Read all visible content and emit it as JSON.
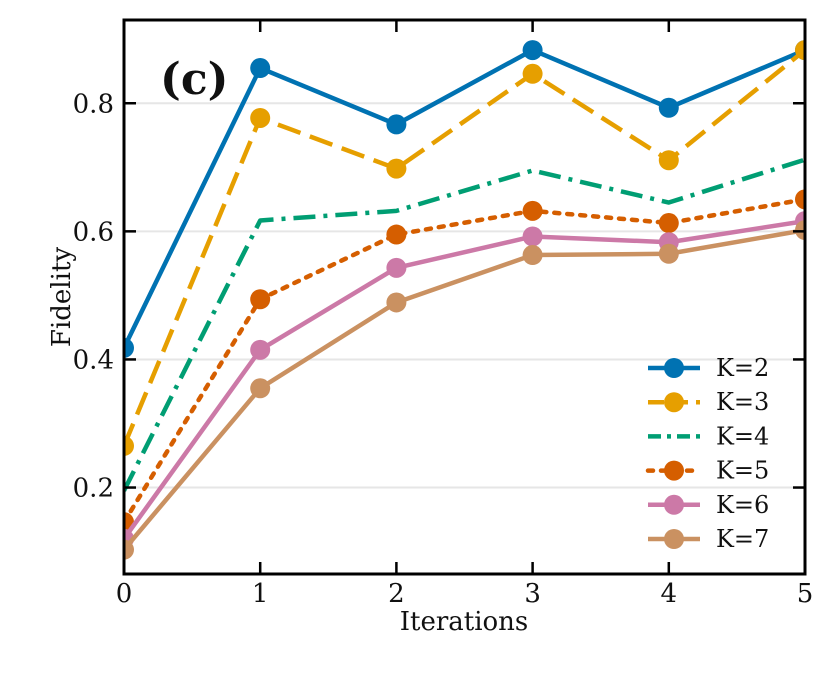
{
  "chart_data": {
    "type": "line",
    "panel_label": "(c)",
    "xlabel": "Iterations",
    "ylabel": "Fidelity",
    "x": [
      0,
      1,
      2,
      3,
      4,
      5
    ],
    "x_ticks": [
      0,
      1,
      2,
      3,
      4,
      5
    ],
    "y_ticks": [
      0.2,
      0.4,
      0.6,
      0.8
    ],
    "x_tick_labels": [
      "0",
      "1",
      "2",
      "3",
      "4",
      "5"
    ],
    "y_tick_labels": [
      "0.2",
      "0.4",
      "0.6",
      "0.8"
    ],
    "xlim": [
      0,
      5
    ],
    "ylim": [
      0.065,
      0.93
    ],
    "grid": "horizontal",
    "legend_position": "bottom-right",
    "series": [
      {
        "name": "K=2",
        "color": "#0072B2",
        "linestyle": "solid",
        "markers": true,
        "values": [
          0.418,
          0.855,
          0.767,
          0.883,
          0.793,
          0.883
        ]
      },
      {
        "name": "K=3",
        "color": "#E69F00",
        "linestyle": "dashed",
        "markers": true,
        "values": [
          0.265,
          0.777,
          0.698,
          0.846,
          0.711,
          0.883
        ]
      },
      {
        "name": "K=4",
        "color": "#009E73",
        "linestyle": "dashdot",
        "markers": false,
        "values": [
          0.195,
          0.617,
          0.632,
          0.695,
          0.645,
          0.712
        ]
      },
      {
        "name": "K=5",
        "color": "#D55E00",
        "linestyle": "dotted",
        "markers": true,
        "values": [
          0.146,
          0.494,
          0.595,
          0.632,
          0.613,
          0.65
        ]
      },
      {
        "name": "K=6",
        "color": "#CC79A7",
        "linestyle": "solid",
        "markers": true,
        "values": [
          0.12,
          0.415,
          0.543,
          0.592,
          0.583,
          0.616
        ]
      },
      {
        "name": "K=7",
        "color": "#CA9161",
        "linestyle": "solid",
        "markers": true,
        "values": [
          0.103,
          0.355,
          0.489,
          0.563,
          0.565,
          0.602
        ]
      }
    ]
  }
}
